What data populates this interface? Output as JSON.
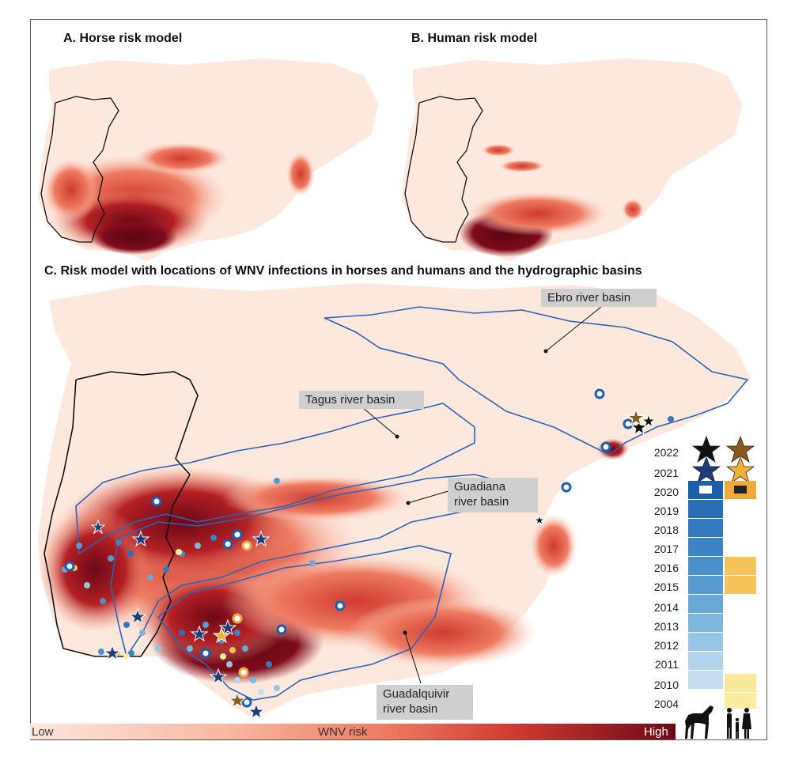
{
  "panels": {
    "a_title": "A. Horse risk model",
    "b_title": "B. Human risk model",
    "c_title": "C. Risk model with locations of WNV infections in horses and humans and the hydrographic basins"
  },
  "basins": {
    "ebro": "Ebro river basin",
    "tagus": "Tagus river basin",
    "guadiana_1": "Guadiana",
    "guadiana_2": "river basin",
    "guadalquivir_1": "Guadalquivir",
    "guadalquivir_2": "river basin"
  },
  "legend": {
    "years": [
      "2022",
      "2021",
      "2020",
      "2019",
      "2018",
      "2017",
      "2016",
      "2015",
      "2014",
      "2013",
      "2012",
      "2011",
      "2010",
      "2004"
    ],
    "horse_colors": {
      "2020": "#1a5fa8",
      "2019": "#2a6fb6",
      "2018": "#3479bd",
      "2017": "#3c84c3",
      "2016": "#4a90cb",
      "2015": "#569ad0",
      "2014": "#6aa8d6",
      "2013": "#7fb6dd",
      "2012": "#98c5e4",
      "2011": "#b3d4eb",
      "2010": "#c7def0"
    },
    "human_colors": {
      "2020": "#f2a93b",
      "2016": "#f6c25a",
      "2015": "#f6c25a",
      "2010": "#f8e89a",
      "2004": "#f9ec9e"
    },
    "star_colors": {
      "horse_2022": "#111111",
      "human_2022": "#8a5a1c",
      "horse_2021": "#1c3d7a",
      "human_2021": "#f3b13a"
    },
    "horse_icon": "horse-icon",
    "human_icon": "family-icon"
  },
  "risk_scale": {
    "low": "Low",
    "mid": "WNV risk",
    "high": "High",
    "colors": [
      "#fde6dc",
      "#fbd2c2",
      "#f8b9a3",
      "#f49c82",
      "#ee7b62",
      "#e35a46",
      "#cf3a30",
      "#b32024",
      "#8e0f1d",
      "#6c0818"
    ]
  },
  "colors": {
    "land": "#fde8de",
    "basin_line": "#2f63b3",
    "border_line": "#111111"
  }
}
